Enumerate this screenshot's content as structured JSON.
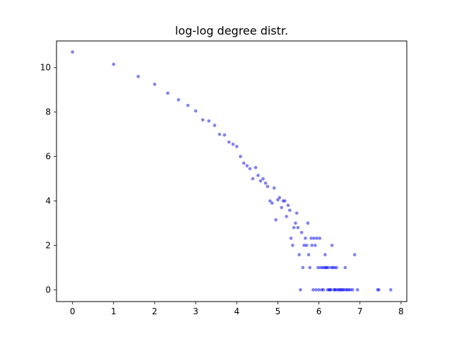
{
  "chart_data": {
    "type": "scatter",
    "title": "log-log degree distr.",
    "xlabel": "",
    "ylabel": "",
    "xlim": [
      -0.39,
      8.14
    ],
    "ylim": [
      -0.53,
      11.2
    ],
    "xticks": [
      0,
      1,
      2,
      3,
      4,
      5,
      6,
      7,
      8
    ],
    "yticks": [
      0,
      2,
      4,
      6,
      8,
      10
    ],
    "xtick_labels": [
      "0",
      "1",
      "2",
      "3",
      "4",
      "5",
      "6",
      "7",
      "8"
    ],
    "ytick_labels": [
      "0",
      "2",
      "4",
      "6",
      "8",
      "10"
    ],
    "grid": false,
    "marker_color": "#0000ff",
    "marker_alpha": 0.5,
    "series": [
      {
        "points": [
          [
            0.0,
            10.7
          ],
          [
            1.0,
            10.15
          ],
          [
            1.6,
            9.6
          ],
          [
            2.0,
            9.25
          ],
          [
            2.32,
            8.85
          ],
          [
            2.58,
            8.55
          ],
          [
            2.81,
            8.3
          ],
          [
            3.0,
            8.05
          ],
          [
            3.17,
            7.65
          ],
          [
            3.32,
            7.6
          ],
          [
            3.46,
            7.4
          ],
          [
            3.58,
            7.0
          ],
          [
            3.7,
            6.97
          ],
          [
            3.81,
            6.65
          ],
          [
            3.91,
            6.55
          ],
          [
            4.0,
            6.45
          ],
          [
            4.09,
            6.0
          ],
          [
            4.17,
            5.7
          ],
          [
            4.25,
            5.58
          ],
          [
            4.32,
            5.45
          ],
          [
            4.39,
            5.0
          ],
          [
            4.46,
            5.5
          ],
          [
            4.52,
            5.15
          ],
          [
            4.58,
            4.9
          ],
          [
            4.64,
            5.0
          ],
          [
            4.7,
            4.8
          ],
          [
            4.75,
            4.65
          ],
          [
            4.81,
            4.0
          ],
          [
            4.86,
            3.9
          ],
          [
            4.91,
            4.58
          ],
          [
            4.95,
            3.15
          ],
          [
            5.0,
            4.05
          ],
          [
            5.04,
            4.15
          ],
          [
            5.09,
            3.7
          ],
          [
            5.13,
            4.0
          ],
          [
            5.17,
            4.0
          ],
          [
            5.21,
            3.3
          ],
          [
            5.25,
            3.8
          ],
          [
            5.29,
            3.58
          ],
          [
            5.32,
            2.32
          ],
          [
            5.36,
            2.0
          ],
          [
            5.39,
            2.8
          ],
          [
            5.43,
            3.0
          ],
          [
            5.46,
            3.45
          ],
          [
            5.49,
            2.8
          ],
          [
            5.52,
            1.58
          ],
          [
            5.55,
            0.0
          ],
          [
            5.58,
            2.58
          ],
          [
            5.61,
            1.0
          ],
          [
            5.64,
            2.0
          ],
          [
            5.67,
            2.32
          ],
          [
            5.7,
            2.0
          ],
          [
            5.73,
            3.0
          ],
          [
            5.75,
            1.58
          ],
          [
            5.78,
            1.0
          ],
          [
            5.81,
            2.32
          ],
          [
            5.83,
            2.0
          ],
          [
            5.86,
            0.0
          ],
          [
            5.88,
            2.32
          ],
          [
            5.91,
            2.0
          ],
          [
            5.93,
            0.0
          ],
          [
            5.95,
            2.32
          ],
          [
            5.98,
            1.0
          ],
          [
            6.0,
            0.0
          ],
          [
            6.02,
            2.32
          ],
          [
            6.04,
            1.0
          ],
          [
            6.07,
            0.0
          ],
          [
            6.09,
            1.0
          ],
          [
            6.11,
            0.0
          ],
          [
            6.13,
            1.0
          ],
          [
            6.15,
            1.58
          ],
          [
            6.17,
            1.0
          ],
          [
            6.19,
            1.0
          ],
          [
            6.21,
            0.0
          ],
          [
            6.23,
            1.0
          ],
          [
            6.25,
            0.0
          ],
          [
            6.27,
            0.0
          ],
          [
            6.29,
            0.0
          ],
          [
            6.3,
            1.0
          ],
          [
            6.32,
            2.0
          ],
          [
            6.34,
            1.0
          ],
          [
            6.36,
            0.0
          ],
          [
            6.38,
            1.0
          ],
          [
            6.39,
            0.0
          ],
          [
            6.41,
            0.0
          ],
          [
            6.43,
            1.0
          ],
          [
            6.46,
            0.0
          ],
          [
            6.49,
            0.0
          ],
          [
            6.52,
            0.0
          ],
          [
            6.55,
            0.0
          ],
          [
            6.58,
            0.0
          ],
          [
            6.61,
            0.0
          ],
          [
            6.64,
            1.0
          ],
          [
            6.66,
            0.0
          ],
          [
            6.69,
            0.0
          ],
          [
            6.73,
            0.0
          ],
          [
            6.77,
            0.0
          ],
          [
            6.82,
            0.0
          ],
          [
            6.87,
            1.58
          ],
          [
            6.94,
            0.0
          ],
          [
            7.43,
            0.0
          ],
          [
            7.46,
            0.0
          ],
          [
            7.75,
            0.0
          ]
        ]
      }
    ]
  }
}
